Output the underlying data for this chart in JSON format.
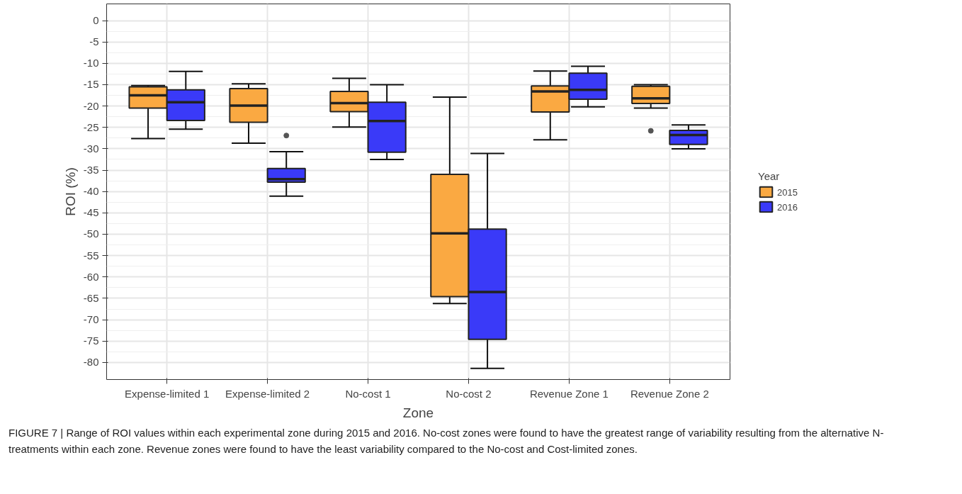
{
  "chart_data": {
    "type": "box",
    "xlabel": "Zone",
    "ylabel": "ROI (%)",
    "legend_title": "Year",
    "categories": [
      "Expense-limited 1",
      "Expense-limited 2",
      "No-cost 1",
      "No-cost 2",
      "Revenue Zone 1",
      "Revenue Zone 2"
    ],
    "series": [
      {
        "name": "2015",
        "color": "#faa942",
        "boxes": [
          {
            "low": -27.6,
            "q1": -20.5,
            "median": -17.5,
            "q3": -15.5,
            "high": -15.2
          },
          {
            "low": -28.7,
            "q1": -23.8,
            "median": -19.9,
            "q3": -15.9,
            "high": -14.8
          },
          {
            "low": -24.9,
            "q1": -21.3,
            "median": -19.3,
            "q3": -16.6,
            "high": -13.5
          },
          {
            "low": -66.2,
            "q1": -64.6,
            "median": -49.8,
            "q3": -36.0,
            "high": -17.9
          },
          {
            "low": -27.9,
            "q1": -21.4,
            "median": -16.6,
            "q3": -15.3,
            "high": -11.8
          },
          {
            "low": -20.5,
            "q1": -19.4,
            "median": -18.2,
            "q3": -15.4,
            "high": -15.0,
            "outliers": [
              -25.8
            ]
          }
        ]
      },
      {
        "name": "2016",
        "color": "#3a3af8",
        "boxes": [
          {
            "low": -25.4,
            "q1": -23.4,
            "median": -19.1,
            "q3": -16.2,
            "high": -11.9
          },
          {
            "low": -41.1,
            "q1": -37.8,
            "median": -37.1,
            "q3": -34.6,
            "high": -30.7,
            "outliers": [
              -26.9
            ]
          },
          {
            "low": -32.5,
            "q1": -30.8,
            "median": -23.5,
            "q3": -19.1,
            "high": -15.0
          },
          {
            "low": -81.4,
            "q1": -74.6,
            "median": -63.5,
            "q3": -48.8,
            "high": -31.1
          },
          {
            "low": -20.2,
            "q1": -18.4,
            "median": -16.2,
            "q3": -12.3,
            "high": -10.7
          },
          {
            "low": -30.0,
            "q1": -29.0,
            "median": -26.8,
            "q3": -25.7,
            "high": -24.4
          }
        ]
      }
    ],
    "ylim": [
      -84,
      3.9
    ],
    "yticks": [
      0,
      -5,
      -10,
      -15,
      -20,
      -25,
      -30,
      -35,
      -40,
      -45,
      -50,
      -55,
      -60,
      -65,
      -70,
      -75,
      -80
    ],
    "grid": true,
    "legend": "right",
    "annotations": [
      "FIGURE 7 | Range of ROI values within each experimental zone during 2015 and 2016. No-cost zones were found to have the greatest range of variability resulting from the alternative N-treatments within each zone. Revenue zones were found to have the least variability compared to the No-cost and Cost-limited zones."
    ]
  }
}
